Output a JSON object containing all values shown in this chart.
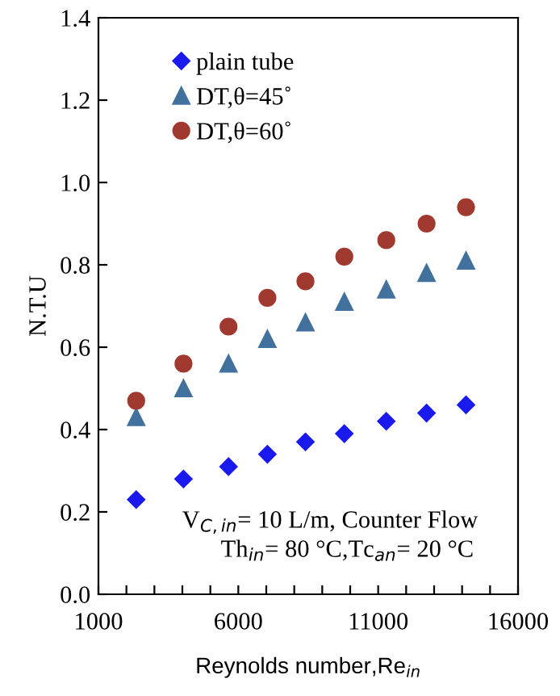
{
  "chart_data": {
    "type": "scatter",
    "xlabel": "Reynolds number,Re$_{in}$",
    "ylabel": "N.T.U",
    "x": [
      2350,
      4040,
      5650,
      7040,
      8400,
      9790,
      11290,
      12730,
      14140
    ],
    "series": [
      {
        "name": "plain tube",
        "color": "#1a1aee",
        "marker": "diamond",
        "values": [
          0.23,
          0.28,
          0.31,
          0.34,
          0.37,
          0.39,
          0.42,
          0.44,
          0.46
        ]
      },
      {
        "name": "DT,θ=45˚",
        "color": "#41719c",
        "marker": "triangle",
        "values": [
          0.43,
          0.5,
          0.56,
          0.62,
          0.66,
          0.71,
          0.74,
          0.78,
          0.81
        ]
      },
      {
        "name": "DT,θ=60˚",
        "color": "#a0392f",
        "marker": "circle",
        "values": [
          0.47,
          0.56,
          0.65,
          0.72,
          0.76,
          0.82,
          0.86,
          0.9,
          0.94
        ]
      }
    ],
    "xlim": [
      1000,
      16000
    ],
    "xticks": [
      1000,
      {
        "value": 2000,
        "label": null
      },
      {
        "value": 3000,
        "label": null
      },
      {
        "value": 4000,
        "label": null
      },
      {
        "value": 5000,
        "label": null
      },
      6000,
      {
        "value": 7000,
        "label": null
      },
      {
        "value": 8000,
        "label": null
      },
      {
        "value": 9000,
        "label": null
      },
      {
        "value": 10000,
        "label": null
      },
      11000,
      {
        "value": 12000,
        "label": null
      },
      {
        "value": 13000,
        "label": null
      },
      {
        "value": 14000,
        "label": null
      },
      {
        "value": 15000,
        "label": null
      },
      16000
    ],
    "ylim": [
      0,
      1.4
    ],
    "yticks": [
      {
        "value": 0,
        "label": "0.0"
      },
      0.2,
      0.4,
      0.6,
      0.8,
      {
        "value": 1.0,
        "label": "1.0"
      },
      1.2,
      1.4
    ],
    "annotations": [
      {
        "text": "V$_{C,in}$= 10 L/m, Counter Flow"
      },
      {
        "text": "Th$_{in}$= 80 °C,Tc$_{an}$= 20 °C"
      }
    ],
    "legend": "top left",
    "grid": false
  }
}
